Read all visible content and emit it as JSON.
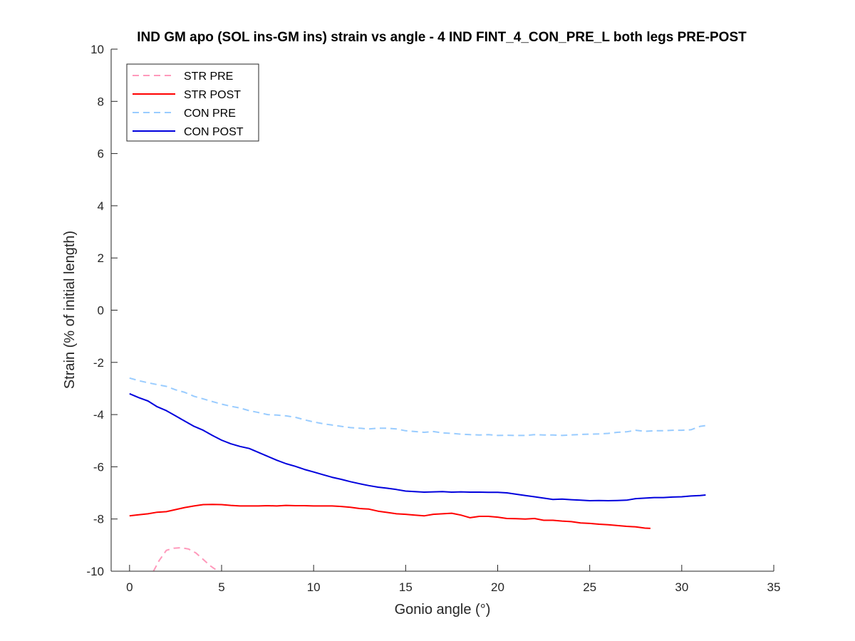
{
  "chart_data": {
    "type": "line",
    "title": "IND GM apo (SOL ins-GM ins) strain vs angle - 4 IND FINT_4_CON_PRE_L both legs PRE-POST",
    "xlabel": "Gonio angle (°)",
    "ylabel": "Strain (% of initial length)",
    "xlim": [
      -1,
      35
    ],
    "ylim": [
      -10,
      10
    ],
    "xticks": [
      0,
      5,
      10,
      15,
      20,
      25,
      30,
      35
    ],
    "xtick_labels": [
      "0",
      "5",
      "10",
      "15",
      "20",
      "25",
      "30",
      "35"
    ],
    "yticks": [
      -10,
      -8,
      -6,
      -4,
      -2,
      0,
      2,
      4,
      6,
      8,
      10
    ],
    "ytick_labels": [
      "-10",
      "-8",
      "-6",
      "-4",
      "-2",
      "0",
      "2",
      "4",
      "6",
      "8",
      "10"
    ],
    "grid": false,
    "legend_position": "top-left",
    "series": [
      {
        "name": "STR PRE",
        "color": "#FF99BB",
        "dash": "dashed",
        "x": [
          1.3,
          1.6,
          2.0,
          2.4,
          2.8,
          3.2,
          3.6,
          4.0,
          4.4,
          4.8
        ],
        "y": [
          -10.0,
          -9.6,
          -9.2,
          -9.12,
          -9.1,
          -9.15,
          -9.3,
          -9.55,
          -9.8,
          -10.0
        ]
      },
      {
        "name": "STR POST",
        "color": "#FF0000",
        "dash": "solid",
        "x": [
          0,
          0.5,
          1,
          1.5,
          2,
          2.5,
          3,
          3.5,
          4,
          4.5,
          5,
          5.5,
          6,
          6.5,
          7,
          7.5,
          8,
          8.5,
          9,
          9.5,
          10,
          10.5,
          11,
          11.5,
          12,
          12.5,
          13,
          13.5,
          14,
          14.5,
          15,
          15.5,
          16,
          16.5,
          17,
          17.5,
          18,
          18.5,
          19,
          19.5,
          20,
          20.5,
          21,
          21.5,
          22,
          22.5,
          23,
          23.5,
          24,
          24.5,
          25,
          25.5,
          26,
          26.5,
          27,
          27.5,
          28,
          28.3
        ],
        "y": [
          -7.88,
          -7.84,
          -7.8,
          -7.74,
          -7.72,
          -7.64,
          -7.56,
          -7.5,
          -7.45,
          -7.44,
          -7.45,
          -7.48,
          -7.5,
          -7.5,
          -7.5,
          -7.49,
          -7.5,
          -7.48,
          -7.49,
          -7.49,
          -7.5,
          -7.5,
          -7.5,
          -7.52,
          -7.55,
          -7.6,
          -7.62,
          -7.7,
          -7.75,
          -7.8,
          -7.82,
          -7.85,
          -7.88,
          -7.82,
          -7.8,
          -7.78,
          -7.85,
          -7.95,
          -7.9,
          -7.9,
          -7.93,
          -7.98,
          -7.99,
          -8.0,
          -7.98,
          -8.05,
          -8.05,
          -8.08,
          -8.1,
          -8.15,
          -8.17,
          -8.2,
          -8.22,
          -8.25,
          -8.28,
          -8.3,
          -8.35,
          -8.36
        ]
      },
      {
        "name": "CON PRE",
        "color": "#99CCFF",
        "dash": "dashed",
        "x": [
          0,
          0.5,
          1,
          1.5,
          2,
          2.5,
          3,
          3.5,
          4,
          4.5,
          5,
          5.5,
          6,
          6.5,
          7,
          7.5,
          8,
          8.5,
          9,
          9.5,
          10,
          10.5,
          11,
          11.5,
          12,
          12.5,
          13,
          13.5,
          14,
          14.5,
          15,
          15.5,
          16,
          16.5,
          17,
          17.5,
          18,
          18.5,
          19,
          19.5,
          20,
          20.5,
          21,
          21.5,
          22,
          22.5,
          23,
          23.5,
          24,
          24.5,
          25,
          25.5,
          26,
          26.5,
          27,
          27.5,
          28,
          28.5,
          29,
          29.5,
          30,
          30.5,
          31,
          31.3
        ],
        "y": [
          -2.6,
          -2.7,
          -2.78,
          -2.85,
          -2.92,
          -3.05,
          -3.15,
          -3.3,
          -3.4,
          -3.5,
          -3.6,
          -3.68,
          -3.75,
          -3.85,
          -3.92,
          -4.0,
          -4.02,
          -4.05,
          -4.1,
          -4.2,
          -4.28,
          -4.35,
          -4.4,
          -4.45,
          -4.5,
          -4.52,
          -4.55,
          -4.52,
          -4.52,
          -4.55,
          -4.62,
          -4.65,
          -4.68,
          -4.65,
          -4.7,
          -4.72,
          -4.75,
          -4.77,
          -4.78,
          -4.77,
          -4.8,
          -4.79,
          -4.8,
          -4.8,
          -4.77,
          -4.78,
          -4.78,
          -4.8,
          -4.78,
          -4.76,
          -4.75,
          -4.74,
          -4.72,
          -4.68,
          -4.66,
          -4.6,
          -4.64,
          -4.62,
          -4.62,
          -4.6,
          -4.6,
          -4.58,
          -4.45,
          -4.42
        ]
      },
      {
        "name": "CON POST",
        "color": "#0000DD",
        "dash": "solid",
        "x": [
          0,
          0.5,
          1,
          1.5,
          2,
          2.5,
          3,
          3.5,
          4,
          4.5,
          5,
          5.5,
          6,
          6.5,
          7,
          7.5,
          8,
          8.5,
          9,
          9.5,
          10,
          10.5,
          11,
          11.5,
          12,
          12.5,
          13,
          13.5,
          14,
          14.5,
          15,
          15.5,
          16,
          16.5,
          17,
          17.5,
          18,
          18.5,
          19,
          19.5,
          20,
          20.5,
          21,
          21.5,
          22,
          22.5,
          23,
          23.5,
          24,
          24.5,
          25,
          25.5,
          26,
          26.5,
          27,
          27.5,
          28,
          28.5,
          29,
          29.5,
          30,
          30.5,
          31,
          31.3
        ],
        "y": [
          -3.2,
          -3.35,
          -3.48,
          -3.7,
          -3.85,
          -4.05,
          -4.25,
          -4.45,
          -4.6,
          -4.8,
          -4.98,
          -5.12,
          -5.22,
          -5.3,
          -5.45,
          -5.6,
          -5.75,
          -5.88,
          -5.98,
          -6.1,
          -6.2,
          -6.3,
          -6.4,
          -6.48,
          -6.57,
          -6.65,
          -6.72,
          -6.78,
          -6.82,
          -6.87,
          -6.93,
          -6.95,
          -6.97,
          -6.96,
          -6.95,
          -6.97,
          -6.96,
          -6.97,
          -6.97,
          -6.98,
          -6.98,
          -7.0,
          -7.05,
          -7.1,
          -7.15,
          -7.2,
          -7.25,
          -7.24,
          -7.26,
          -7.28,
          -7.3,
          -7.29,
          -7.3,
          -7.29,
          -7.28,
          -7.22,
          -7.2,
          -7.18,
          -7.18,
          -7.16,
          -7.15,
          -7.12,
          -7.1,
          -7.08
        ]
      }
    ]
  }
}
